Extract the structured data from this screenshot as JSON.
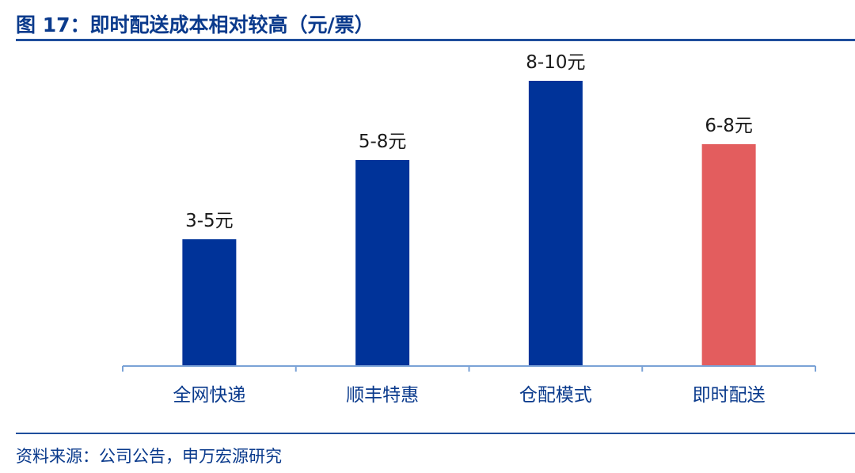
{
  "title": "图 17：即时配送成本相对较高（元/票）",
  "source": "资料来源：公司公告，申万宏源研究",
  "chart_data": {
    "type": "bar",
    "categories": [
      "全网快递",
      "顺丰特惠",
      "仓配模式",
      "即时配送"
    ],
    "values": [
      4,
      6.5,
      9,
      7
    ],
    "value_labels": [
      "3-5元",
      "5-8元",
      "8-10元",
      "6-8元"
    ],
    "ylim": [
      0,
      10
    ],
    "grid": false,
    "colors": [
      "#003399",
      "#003399",
      "#003399",
      "#e35d5e"
    ],
    "axis_color": "#7aa2d6",
    "label_color": "#0a3a8c"
  }
}
